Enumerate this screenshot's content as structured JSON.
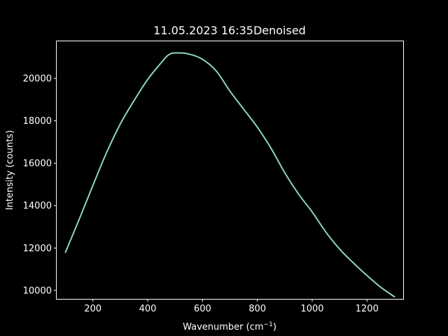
{
  "chart_data": {
    "type": "line",
    "title": "11.05.2023 16:35Denoised",
    "xlabel": "Wavenumber (cm",
    "xlabel_superscript": "−1",
    "xlabel_suffix": ")",
    "ylabel": "Intensity (counts)",
    "xlim": [
      68,
      1332
    ],
    "ylim": [
      9600,
      21750
    ],
    "x_ticks": [
      200,
      400,
      600,
      800,
      1000,
      1200
    ],
    "y_ticks": [
      10000,
      12000,
      14000,
      16000,
      18000,
      20000
    ],
    "grid": false,
    "series": [
      {
        "color": "#8dd3c7",
        "x": [
          100,
          150,
          200,
          250,
          300,
          350,
          400,
          450,
          475,
          500,
          550,
          600,
          650,
          700,
          750,
          800,
          850,
          900,
          950,
          1000,
          1050,
          1100,
          1150,
          1200,
          1250,
          1300
        ],
        "y": [
          11800,
          13350,
          14950,
          16500,
          17850,
          18950,
          19950,
          20750,
          21100,
          21200,
          21150,
          20900,
          20350,
          19400,
          18550,
          17700,
          16700,
          15550,
          14550,
          13700,
          12750,
          11950,
          11300,
          10700,
          10150,
          9700
        ]
      }
    ]
  }
}
